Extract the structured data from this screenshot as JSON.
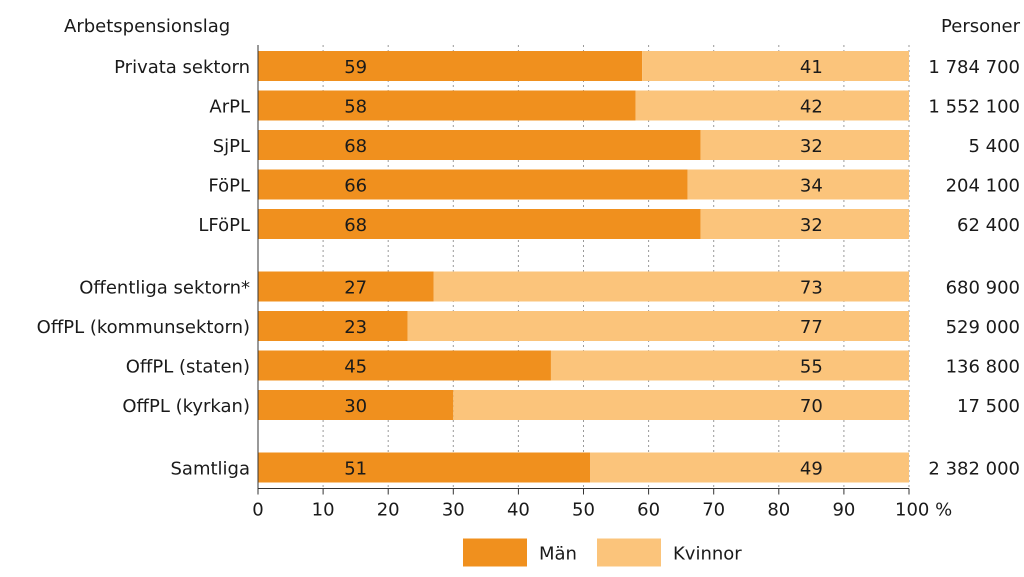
{
  "chart_data": {
    "type": "bar",
    "stacked": true,
    "orientation": "horizontal",
    "left_header": "Arbetspensionslag",
    "right_header": "Personer",
    "categories": [
      "Privata sektorn",
      "ArPL",
      "SjPL",
      "FöPL",
      "LFöPL",
      "Offentliga sektorn*",
      "OffPL (kommunsektorn)",
      "OffPL (staten)",
      "OffPL (kyrkan)",
      "Samtliga"
    ],
    "groups": [
      [
        0,
        1,
        2,
        3,
        4
      ],
      [
        5,
        6,
        7,
        8
      ],
      [
        9
      ]
    ],
    "series": [
      {
        "name": "Män",
        "values": [
          59,
          58,
          68,
          66,
          68,
          27,
          23,
          45,
          30,
          51
        ],
        "color": "#f0901e"
      },
      {
        "name": "Kvinnor",
        "values": [
          41,
          42,
          32,
          34,
          32,
          73,
          77,
          55,
          70,
          49
        ],
        "color": "#fbc47b"
      }
    ],
    "persons": [
      "1 784 700",
      "1 552 100",
      "5 400",
      "204 100",
      "62 400",
      "680 900",
      "529 000",
      "136 800",
      "17 500",
      "2 382 000"
    ],
    "xlim": [
      0,
      100
    ],
    "x_ticks": [
      "0",
      "10",
      "20",
      "30",
      "40",
      "50",
      "60",
      "70",
      "80",
      "90",
      "100 %"
    ],
    "grid": "vertical dashed",
    "legend_position": "bottom-center"
  }
}
